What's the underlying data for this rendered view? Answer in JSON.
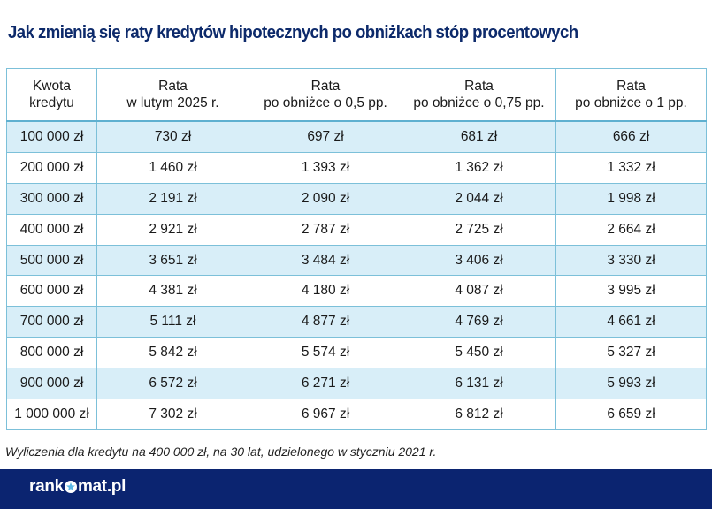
{
  "title": "Jak zmienią się raty kredytów hipotecznych po obniżkach stóp procentowych",
  "table": {
    "headers": [
      [
        "Kwota",
        "kredytu"
      ],
      [
        "Rata",
        "w lutym 2025 r."
      ],
      [
        "Rata",
        "po obniżce o 0,5 pp."
      ],
      [
        "Rata",
        "po obniżce o 0,75 pp."
      ],
      [
        "Rata",
        "po obniżce o 1 pp."
      ]
    ],
    "rows": [
      [
        "100 000 zł",
        "730 zł",
        "697 zł",
        "681 zł",
        "666 zł"
      ],
      [
        "200 000 zł",
        "1 460 zł",
        "1 393 zł",
        "1 362 zł",
        "1 332 zł"
      ],
      [
        "300 000 zł",
        "2 191 zł",
        "2 090 zł",
        "2 044 zł",
        "1 998 zł"
      ],
      [
        "400 000 zł",
        "2 921 zł",
        "2 787 zł",
        "2 725 zł",
        "2 664 zł"
      ],
      [
        "500 000 zł",
        "3 651 zł",
        "3 484 zł",
        "3 406 zł",
        "3 330 zł"
      ],
      [
        "600 000 zł",
        "4 381 zł",
        "4 180 zł",
        "4 087 zł",
        "3 995 zł"
      ],
      [
        "700 000 zł",
        "5 111 zł",
        "4 877 zł",
        "4 769 zł",
        "4 661 zł"
      ],
      [
        "800 000 zł",
        "5 842 zł",
        "5 574 zł",
        "5 450 zł",
        "5 327 zł"
      ],
      [
        "900 000 zł",
        "6 572 zł",
        "6 271 zł",
        "6 131 zł",
        "5 993 zł"
      ],
      [
        "1 000 000 zł",
        "7 302 zł",
        "6 967 zł",
        "6 812 zł",
        "6 659 zł"
      ]
    ]
  },
  "note": "Wyliczenia dla kredytu na 400 000 zł, na 30 lat, udzielonego w styczniu 2021 r.",
  "logo": {
    "part1": "rank",
    "part2": "mat.pl",
    "full": "rankomat.pl"
  },
  "colors": {
    "title": "#0d2a6b",
    "band": "#0b2470",
    "row_shade": "#d8eef8",
    "border": "#7cc0d9",
    "star": "#5bb8e6"
  }
}
